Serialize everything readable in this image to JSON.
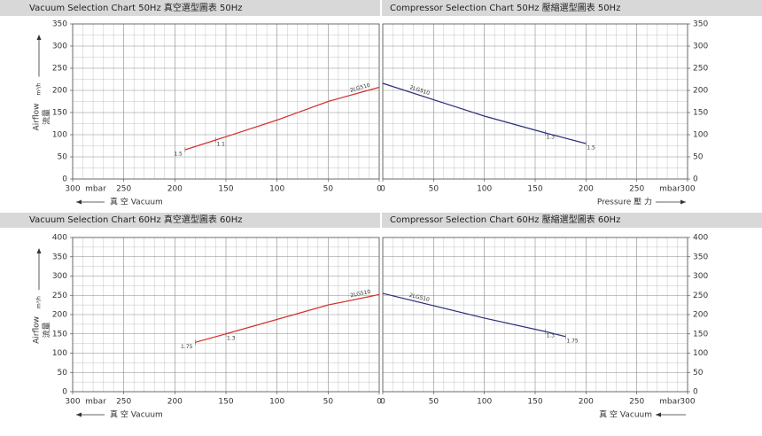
{
  "chart_data": [
    {
      "type": "line",
      "title": "Vacuum Selection Chart 50Hz   真空選型圖表 50Hz",
      "xlabel": "真 空 Vacuum",
      "xlabel_arrow": "left",
      "xunit": "mbar",
      "ylabel": "Airflow",
      "ylabel_cn": "流量",
      "yunit": "m³/h",
      "yaxis_side": "left",
      "x": [
        190,
        160,
        100,
        50,
        0
      ],
      "series": [
        {
          "name": "2LG510",
          "color": "#d6312b",
          "values": [
            66,
            88,
            133,
            175,
            207
          ],
          "point_labels": [
            "1.5",
            "1.1",
            null,
            null,
            null
          ]
        }
      ],
      "xlim": [
        300,
        0
      ],
      "ylim": [
        0,
        350
      ],
      "xticks": [
        300,
        250,
        200,
        150,
        100,
        50,
        0
      ],
      "yticks": [
        0,
        50,
        100,
        150,
        200,
        250,
        300,
        350
      ],
      "grid": true
    },
    {
      "type": "line",
      "title": "Compressor Selection Chart 50Hz   壓縮選型圖表 50Hz",
      "xlabel": "Pressure 壓 力",
      "xlabel_arrow": "right",
      "xunit": "mbar",
      "yaxis_side": "right",
      "x": [
        0,
        100,
        160,
        200
      ],
      "series": [
        {
          "name": "2LG510",
          "color": "#2b2f7a",
          "values": [
            216,
            142,
            104,
            80
          ],
          "point_labels": [
            null,
            null,
            "1.3",
            "1.5"
          ]
        }
      ],
      "xlim": [
        0,
        300
      ],
      "ylim": [
        0,
        350
      ],
      "xticks": [
        0,
        50,
        100,
        150,
        200,
        250,
        300
      ],
      "yticks": [
        0,
        50,
        100,
        150,
        200,
        250,
        300,
        350
      ],
      "grid": true
    },
    {
      "type": "line",
      "title": "Vacuum Selection Chart 60Hz   真空選型圖表 60Hz",
      "xlabel": "真 空 Vacuum",
      "xlabel_arrow": "left",
      "xunit": "mbar",
      "ylabel": "Airflow",
      "ylabel_cn": "流量",
      "yunit": "m³/h",
      "yaxis_side": "left",
      "x": [
        180,
        150,
        50,
        0
      ],
      "series": [
        {
          "name": "2LG510",
          "color": "#d6312b",
          "values": [
            128,
            150,
            225,
            252
          ],
          "point_labels": [
            "1.75",
            "1.3",
            null,
            null
          ]
        }
      ],
      "xlim": [
        300,
        0
      ],
      "ylim": [
        0,
        400
      ],
      "xticks": [
        300,
        250,
        200,
        150,
        100,
        50,
        0
      ],
      "yticks": [
        0,
        50,
        100,
        150,
        200,
        250,
        300,
        350,
        400
      ],
      "grid": true
    },
    {
      "type": "line",
      "title": "Compressor Selection Chart 60Hz   壓縮選型圖表 60Hz",
      "xlabel": "真 空 Vacuum",
      "xlabel_arrow": "left",
      "xunit": "mbar",
      "yaxis_side": "right",
      "x": [
        0,
        100,
        160,
        180
      ],
      "series": [
        {
          "name": "2LG510",
          "color": "#2b2f7a",
          "values": [
            255,
            191,
            156,
            143
          ],
          "point_labels": [
            null,
            null,
            "1.3",
            "1.75"
          ]
        }
      ],
      "xlim": [
        0,
        300
      ],
      "ylim": [
        0,
        400
      ],
      "xticks": [
        0,
        50,
        100,
        150,
        200,
        250,
        300
      ],
      "yticks": [
        0,
        50,
        100,
        150,
        200,
        250,
        300,
        350,
        400
      ],
      "grid": true
    }
  ]
}
